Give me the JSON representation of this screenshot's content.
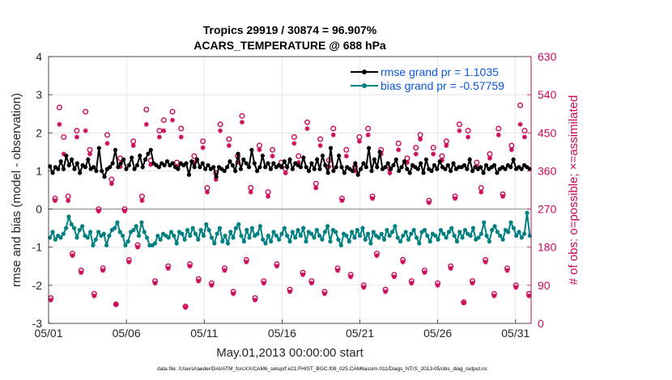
{
  "chart_data": {
    "type": "line",
    "title_line1": "Tropics 29919 / 30874 = 96.907%",
    "title_line2": "ACARS_TEMPERATURE @ 688 hPa",
    "xlabel": "May.01,2013 00:00:00 start",
    "ylabel_left": "rmse and bias (model - observation)",
    "ylabel_right": "# of obs: o=possible; ×=assimilated",
    "footer": "data file: /Users/raeder/DAI/ATM_forcXX/CAM6_setup/f.e21.FHIST_BGC.f09_025.CAM6assim.011/Diags_NTrS_2013-05/obs_diag_output.nc",
    "x_ticks": [
      "05/01",
      "05/06",
      "05/11",
      "05/16",
      "05/21",
      "05/26",
      "05/31"
    ],
    "x_tick_days": [
      1,
      6,
      11,
      16,
      21,
      26,
      31
    ],
    "xlim": [
      1,
      32
    ],
    "ylim_left": [
      -3,
      4
    ],
    "y_ticks_left": [
      "4",
      "3",
      "2",
      "1",
      "0",
      "-1",
      "-2",
      "-3"
    ],
    "ylim_right": [
      0,
      630
    ],
    "y_ticks_right": [
      "630",
      "540",
      "450",
      "360",
      "270",
      "180",
      "90",
      "0"
    ],
    "colors": {
      "rmse": "#000000",
      "bias": "#008080",
      "obs": "#cc0a5a",
      "legend_text": "#0b56d8",
      "right_axis": "#cc0a5a"
    },
    "legend": [
      {
        "name": "rmse grand pr = 1.1035",
        "color": "#000000"
      },
      {
        "name": "bias grand pr = -0.57759",
        "color": "#008080"
      }
    ],
    "series": [
      {
        "name": "rmse",
        "values": [
          1.12,
          0.95,
          1.1,
          1.05,
          1.25,
          1.05,
          1.4,
          1.15,
          1.3,
          1.05,
          1.2,
          0.95,
          1.15,
          1.1,
          1.3,
          1.05,
          1.1,
          1.0,
          1.6,
          1.0,
          0.85,
          1.05,
          1.1,
          1.2,
          1.55,
          1.1,
          1.2,
          1.3,
          1.05,
          1.15,
          1.35,
          1.05,
          1.15,
          1.4,
          1.1,
          1.3,
          1.45,
          1.55,
          1.2,
          1.15,
          1.1,
          1.2,
          1.15,
          1.25,
          1.15,
          1.2,
          1.1,
          1.05,
          1.2,
          1.15,
          1.2,
          0.9,
          1.25,
          1.1,
          1.3,
          1.1,
          1.2,
          1.05,
          1.15,
          1.05,
          1.1,
          0.85,
          1.1,
          1.05,
          1.0,
          1.1,
          1.25,
          1.15,
          1.0,
          1.45,
          1.05,
          1.3,
          1.2,
          1.1,
          1.55,
          1.2,
          1.0,
          1.1,
          1.4,
          1.1,
          1.2,
          1.05,
          1.2,
          1.1,
          1.15,
          1.1,
          1.25,
          1.1,
          1.3,
          1.05,
          1.2,
          1.15,
          1.1,
          1.35,
          1.1,
          1.0,
          1.2,
          1.05,
          1.3,
          1.05,
          1.4,
          1.15,
          0.95,
          1.6,
          1.0,
          1.1,
          1.4,
          1.1,
          0.95,
          1.1,
          1.05,
          1.0,
          1.2,
          0.9,
          1.05,
          1.2,
          1.1,
          1.6,
          1.0,
          1.3,
          1.1,
          1.5,
          1.05,
          1.1,
          1.2,
          1.05,
          1.15,
          1.3,
          1.0,
          1.1,
          1.25,
          1.05,
          0.95,
          1.15,
          1.1,
          1.05,
          1.2,
          0.95,
          1.3,
          1.05,
          1.0,
          1.15,
          1.05,
          1.25,
          1.1,
          1.05,
          1.15,
          1.0,
          1.2,
          1.05,
          1.1,
          1.1,
          1.15,
          1.05,
          1.3,
          1.0,
          1.1,
          1.05,
          1.1,
          0.95,
          1.15,
          1.05,
          1.1,
          1.15,
          0.95,
          1.05,
          1.1,
          1.05,
          1.15,
          1.1,
          1.3,
          1.05,
          1.1,
          1.05,
          1.15,
          1.1,
          1.05
        ]
      },
      {
        "name": "bias",
        "values": [
          -0.75,
          -0.6,
          -0.8,
          -0.7,
          -0.75,
          -0.65,
          -0.5,
          -0.2,
          -0.4,
          -0.5,
          -0.75,
          -0.55,
          -0.45,
          -0.7,
          -0.75,
          -0.6,
          -0.95,
          -0.8,
          -0.6,
          -0.7,
          -0.65,
          -0.95,
          -0.7,
          -0.55,
          -0.5,
          -0.35,
          -0.6,
          -0.7,
          -0.95,
          -0.85,
          -0.6,
          -0.55,
          -0.45,
          -0.7,
          -0.35,
          -0.6,
          -0.75,
          -0.95,
          -0.95,
          -0.9,
          -0.7,
          -0.8,
          -0.65,
          -0.7,
          -0.75,
          -0.6,
          -0.7,
          -0.9,
          -0.6,
          -0.65,
          -0.8,
          -0.55,
          -0.7,
          -0.5,
          -0.65,
          -0.8,
          -0.55,
          -0.7,
          -0.4,
          -0.55,
          -0.75,
          -0.9,
          -0.65,
          -0.5,
          -0.85,
          -0.7,
          -0.9,
          -0.6,
          -0.75,
          -0.5,
          -0.4,
          -0.7,
          -0.85,
          -0.55,
          -0.75,
          -0.5,
          -0.7,
          -0.65,
          -0.45,
          -0.8,
          -0.9,
          -0.7,
          -0.85,
          -0.6,
          -0.7,
          -0.8,
          -0.65,
          -0.5,
          -0.7,
          -0.85,
          -0.6,
          -0.75,
          -0.55,
          -0.7,
          -0.5,
          -0.85,
          -0.6,
          -0.65,
          -0.75,
          -0.55,
          -0.7,
          -0.8,
          -0.6,
          -0.45,
          -0.85,
          -0.55,
          -0.6,
          -0.8,
          -0.95,
          -0.65,
          -0.7,
          -0.85,
          -0.6,
          -0.75,
          -0.55,
          -0.7,
          -0.5,
          -0.8,
          -0.65,
          -0.9,
          -0.6,
          -0.7,
          -0.75,
          -0.65,
          -0.8,
          -0.55,
          -0.7,
          -0.6,
          -0.45,
          -0.75,
          -0.85,
          -0.7,
          -0.6,
          -0.8,
          -0.65,
          -0.55,
          -0.75,
          -0.9,
          -0.6,
          -0.55,
          -0.7,
          -0.85,
          -0.65,
          -0.7,
          -0.8,
          -0.55,
          -0.65,
          -0.75,
          -0.6,
          -0.5,
          -0.7,
          -0.85,
          -0.6,
          -0.75,
          -0.55,
          -0.65,
          -0.7,
          -0.5,
          -0.8,
          -0.75,
          -0.65,
          -0.35,
          -0.7,
          -0.85,
          -0.55,
          -0.45,
          -0.6,
          -0.7,
          -0.8,
          -0.55,
          -0.6,
          -0.35,
          -0.5,
          -0.7,
          -0.6,
          -0.75,
          -0.65,
          -0.1,
          -0.7
        ]
      },
      {
        "name": "obs_possible",
        "values": [
          60,
          295,
          510,
          440,
          300,
          165,
          455,
          125,
          500,
          410,
          70,
          270,
          130,
          445,
          340,
          45,
          390,
          270,
          150,
          430,
          185,
          300,
          505,
          385,
          100,
          455,
          480,
          135,
          500,
          380,
          460,
          40,
          140,
          395,
          105,
          430,
          320,
          95,
          355,
          470,
          130,
          435,
          75,
          395,
          490,
          150,
          320,
          60,
          420,
          100,
          310,
          410,
          140,
          380,
          365,
          80,
          440,
          395,
          120,
          475,
          100,
          330,
          435,
          75,
          385,
          460,
          130,
          295,
          410,
          115,
          370,
          440,
          90,
          460,
          300,
          165,
          410,
          80,
          365,
          115,
          425,
          150,
          390,
          100,
          415,
          445,
          125,
          290,
          415,
          95,
          395,
          430,
          135,
          300,
          470,
          50,
          455,
          100,
          380,
          320,
          150,
          400,
          70,
          460,
          305,
          130,
          420,
          90,
          515,
          455,
          70
        ]
      },
      {
        "name": "obs_assimilated",
        "values": [
          55,
          290,
          470,
          400,
          290,
          160,
          440,
          120,
          455,
          400,
          65,
          265,
          125,
          425,
          330,
          45,
          370,
          265,
          145,
          420,
          180,
          290,
          470,
          375,
          95,
          440,
          455,
          130,
          480,
          370,
          440,
          38,
          135,
          380,
          100,
          415,
          310,
          90,
          340,
          455,
          125,
          420,
          70,
          380,
          475,
          145,
          310,
          55,
          410,
          95,
          300,
          395,
          135,
          370,
          355,
          75,
          425,
          380,
          115,
          460,
          95,
          320,
          420,
          70,
          370,
          445,
          125,
          290,
          395,
          110,
          360,
          430,
          85,
          445,
          295,
          160,
          400,
          75,
          355,
          110,
          410,
          145,
          380,
          95,
          400,
          435,
          120,
          285,
          400,
          90,
          385,
          420,
          130,
          295,
          455,
          48,
          440,
          95,
          370,
          310,
          145,
          390,
          65,
          445,
          300,
          125,
          410,
          85,
          470,
          440,
          65
        ]
      }
    ]
  }
}
